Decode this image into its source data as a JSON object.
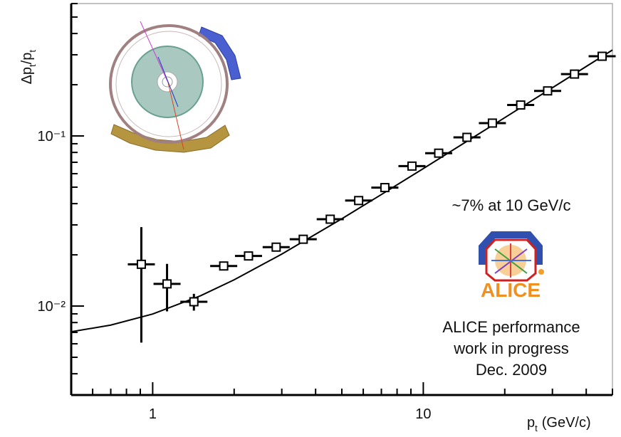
{
  "chart_data": {
    "type": "scatter",
    "ylabel": [
      "Δp",
      "t",
      "/p",
      "t"
    ],
    "xlabel": [
      "p",
      "t",
      "(GeV/c)"
    ],
    "log_x": true,
    "log_y": true,
    "xlim": [
      0.5,
      50
    ],
    "ylim": [
      0.003,
      0.6
    ],
    "xticks": [
      1,
      10
    ],
    "xminor_ticks": [
      0.6,
      0.7,
      0.8,
      0.9,
      2,
      3,
      4,
      5,
      6,
      7,
      8,
      9,
      20,
      30,
      40,
      50
    ],
    "yticks": [
      {
        "value": 0.01,
        "label": "10⁻²"
      },
      {
        "value": 0.1,
        "label": "10⁻¹"
      }
    ],
    "yminor_ticks": [
      0.003,
      0.004,
      0.005,
      0.006,
      0.007,
      0.008,
      0.009,
      0.02,
      0.03,
      0.04,
      0.05,
      0.06,
      0.07,
      0.08,
      0.09,
      0.2,
      0.3,
      0.4,
      0.5,
      0.6
    ],
    "color": "#000000",
    "x": [
      0.908,
      1.13,
      1.42,
      1.83,
      2.26,
      2.86,
      3.6,
      4.53,
      5.77,
      7.21,
      9.08,
      11.4,
      14.5,
      18.0,
      22.9,
      28.8,
      36.2,
      45.8
    ],
    "values": [
      0.0176,
      0.0135,
      0.0106,
      0.0172,
      0.0197,
      0.0222,
      0.0247,
      0.0324,
      0.0417,
      0.0497,
      0.0665,
      0.0792,
      0.0981,
      0.119,
      0.152,
      0.184,
      0.231,
      0.294
    ],
    "yerr": [
      0.0115,
      0.0042,
      0.0012,
      0.0008,
      0.0008,
      0.0008,
      0.0008,
      0.001,
      0.001,
      0.0012,
      0.0015,
      0.0018,
      0.002,
      0.0025,
      0.003,
      0.004,
      0.005,
      0.006
    ],
    "fit": {
      "x": [
        0.5,
        0.7,
        1,
        1.5,
        2,
        3,
        5,
        7,
        10,
        15,
        20,
        30,
        50
      ],
      "values": [
        0.00706,
        0.00773,
        0.00898,
        0.01148,
        0.01427,
        0.0202,
        0.0326,
        0.04524,
        0.0643,
        0.0962,
        0.1281,
        0.1921,
        0.32
      ]
    },
    "annotations": [
      "~7% at 10 GeV/c",
      "ALICE",
      "ALICE performance",
      "work in progress",
      "Dec. 2009"
    ]
  }
}
